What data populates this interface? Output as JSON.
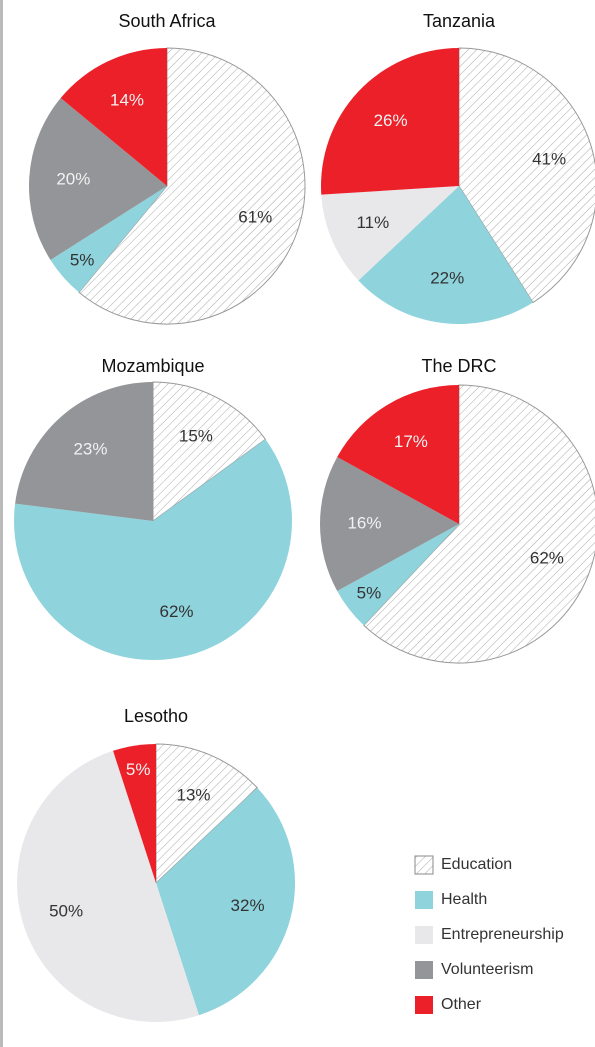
{
  "chart_data": [
    {
      "type": "pie",
      "title": "South Africa",
      "categories": [
        "Education",
        "Health",
        "Volunteerism",
        "Other"
      ],
      "values": [
        61,
        5,
        20,
        14
      ],
      "value_labels": [
        "61%",
        "5%",
        "20%",
        "14%"
      ]
    },
    {
      "type": "pie",
      "title": "Tanzania",
      "categories": [
        "Education",
        "Health",
        "Entrepreneurship",
        "Other"
      ],
      "values": [
        41,
        22,
        11,
        26
      ],
      "value_labels": [
        "41%",
        "22%",
        "11%",
        "26%"
      ]
    },
    {
      "type": "pie",
      "title": "Mozambique",
      "categories": [
        "Education",
        "Health",
        "Volunteerism"
      ],
      "values": [
        15,
        62,
        23
      ],
      "value_labels": [
        "15%",
        "62%",
        "23%"
      ]
    },
    {
      "type": "pie",
      "title": "The DRC",
      "categories": [
        "Education",
        "Health",
        "Volunteerism",
        "Other"
      ],
      "values": [
        62,
        5,
        16,
        17
      ],
      "value_labels": [
        "62%",
        "5%",
        "16%",
        "17%"
      ]
    },
    {
      "type": "pie",
      "title": "Lesotho",
      "categories": [
        "Education",
        "Health",
        "Entrepreneurship",
        "Other"
      ],
      "values": [
        13,
        32,
        50,
        5
      ],
      "value_labels": [
        "13%",
        "32%",
        "50%",
        "5%"
      ]
    }
  ],
  "legend": [
    {
      "name": "Education",
      "color": "#ffffff",
      "pattern": "hatch"
    },
    {
      "name": "Health",
      "color": "#8fd3dc"
    },
    {
      "name": "Entrepreneurship",
      "color": "#e8e8ea"
    },
    {
      "name": "Volunteerism",
      "color": "#939598"
    },
    {
      "name": "Other",
      "color": "#ec2029"
    }
  ]
}
